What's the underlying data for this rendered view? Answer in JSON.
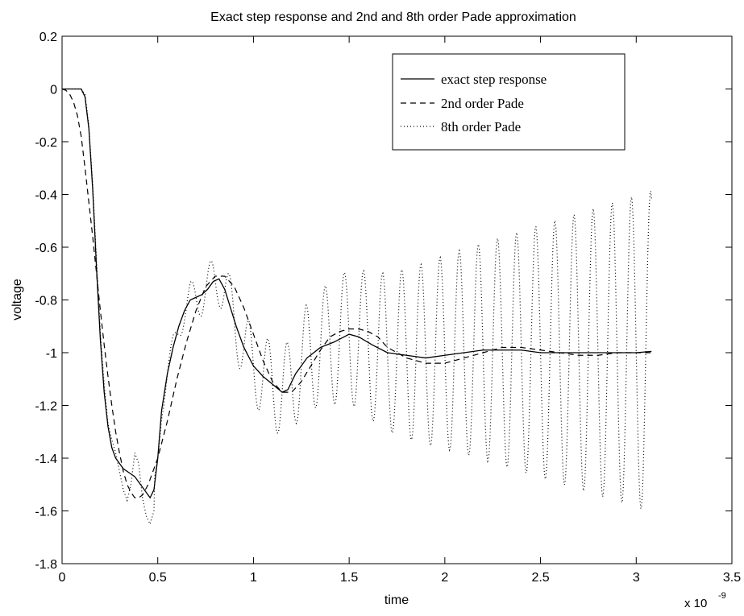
{
  "chart_data": {
    "type": "line",
    "title": "Exact step response and 2nd and 8th order Pade approximation",
    "xlabel": "time",
    "ylabel": "voltage",
    "x_multiplier_label": "x 10",
    "x_multiplier_exp": "-9",
    "xlim": [
      0,
      3.5
    ],
    "ylim": [
      -1.8,
      0.2
    ],
    "xticks": [
      0,
      0.5,
      1,
      1.5,
      2,
      2.5,
      3,
      3.5
    ],
    "xtick_labels": [
      "0",
      "0.5",
      "1",
      "1.5",
      "2",
      "2.5",
      "3",
      "3.5"
    ],
    "yticks": [
      0.2,
      0,
      -0.2,
      -0.4,
      -0.6,
      -0.8,
      -1,
      -1.2,
      -1.4,
      -1.6,
      -1.8
    ],
    "ytick_labels": [
      "0.2",
      "0",
      "-0.2",
      "-0.4",
      "-0.6",
      "-0.8",
      "-1",
      "-1.2",
      "-1.4",
      "-1.6",
      "-1.8"
    ],
    "grid": false,
    "legend_position": "top-right",
    "series": [
      {
        "name": "exact step response",
        "style": "solid",
        "points": [
          [
            0,
            0
          ],
          [
            0.05,
            0
          ],
          [
            0.1,
            0
          ],
          [
            0.12,
            -0.03
          ],
          [
            0.14,
            -0.15
          ],
          [
            0.16,
            -0.38
          ],
          [
            0.18,
            -0.68
          ],
          [
            0.2,
            -0.95
          ],
          [
            0.22,
            -1.15
          ],
          [
            0.24,
            -1.28
          ],
          [
            0.26,
            -1.36
          ],
          [
            0.28,
            -1.4
          ],
          [
            0.3,
            -1.42
          ],
          [
            0.32,
            -1.44
          ],
          [
            0.34,
            -1.45
          ],
          [
            0.36,
            -1.46
          ],
          [
            0.38,
            -1.47
          ],
          [
            0.4,
            -1.49
          ],
          [
            0.42,
            -1.51
          ],
          [
            0.44,
            -1.53
          ],
          [
            0.46,
            -1.55
          ],
          [
            0.48,
            -1.52
          ],
          [
            0.5,
            -1.4
          ],
          [
            0.52,
            -1.22
          ],
          [
            0.55,
            -1.08
          ],
          [
            0.58,
            -0.98
          ],
          [
            0.61,
            -0.9
          ],
          [
            0.64,
            -0.84
          ],
          [
            0.67,
            -0.8
          ],
          [
            0.7,
            -0.79
          ],
          [
            0.73,
            -0.78
          ],
          [
            0.76,
            -0.76
          ],
          [
            0.79,
            -0.73
          ],
          [
            0.82,
            -0.72
          ],
          [
            0.85,
            -0.76
          ],
          [
            0.88,
            -0.83
          ],
          [
            0.91,
            -0.9
          ],
          [
            0.95,
            -0.98
          ],
          [
            1,
            -1.05
          ],
          [
            1.05,
            -1.09
          ],
          [
            1.1,
            -1.12
          ],
          [
            1.15,
            -1.15
          ],
          [
            1.18,
            -1.14
          ],
          [
            1.22,
            -1.08
          ],
          [
            1.28,
            -1.02
          ],
          [
            1.35,
            -0.98
          ],
          [
            1.42,
            -0.96
          ],
          [
            1.5,
            -0.93
          ],
          [
            1.55,
            -0.94
          ],
          [
            1.62,
            -0.97
          ],
          [
            1.7,
            -1
          ],
          [
            1.8,
            -1.01
          ],
          [
            1.9,
            -1.02
          ],
          [
            2,
            -1.01
          ],
          [
            2.1,
            -1
          ],
          [
            2.2,
            -0.99
          ],
          [
            2.3,
            -0.99
          ],
          [
            2.4,
            -0.99
          ],
          [
            2.5,
            -1
          ],
          [
            2.6,
            -1
          ],
          [
            2.7,
            -1
          ],
          [
            2.8,
            -1
          ],
          [
            2.9,
            -1
          ],
          [
            3,
            -1
          ],
          [
            3.08,
            -0.995
          ]
        ]
      },
      {
        "name": "2nd order Pade",
        "style": "dashed",
        "points": [
          [
            0,
            0
          ],
          [
            0.02,
            -0.005
          ],
          [
            0.04,
            -0.02
          ],
          [
            0.06,
            -0.05
          ],
          [
            0.08,
            -0.1
          ],
          [
            0.1,
            -0.18
          ],
          [
            0.12,
            -0.3
          ],
          [
            0.14,
            -0.43
          ],
          [
            0.16,
            -0.56
          ],
          [
            0.18,
            -0.7
          ],
          [
            0.2,
            -0.84
          ],
          [
            0.22,
            -0.97
          ],
          [
            0.24,
            -1.09
          ],
          [
            0.26,
            -1.2
          ],
          [
            0.28,
            -1.3
          ],
          [
            0.3,
            -1.38
          ],
          [
            0.32,
            -1.45
          ],
          [
            0.34,
            -1.5
          ],
          [
            0.36,
            -1.53
          ],
          [
            0.38,
            -1.55
          ],
          [
            0.4,
            -1.55
          ],
          [
            0.42,
            -1.54
          ],
          [
            0.45,
            -1.5
          ],
          [
            0.5,
            -1.4
          ],
          [
            0.55,
            -1.26
          ],
          [
            0.6,
            -1.1
          ],
          [
            0.65,
            -0.96
          ],
          [
            0.7,
            -0.84
          ],
          [
            0.75,
            -0.75
          ],
          [
            0.8,
            -0.71
          ],
          [
            0.85,
            -0.71
          ],
          [
            0.9,
            -0.75
          ],
          [
            0.95,
            -0.83
          ],
          [
            1,
            -0.93
          ],
          [
            1.05,
            -1.03
          ],
          [
            1.1,
            -1.11
          ],
          [
            1.15,
            -1.15
          ],
          [
            1.2,
            -1.15
          ],
          [
            1.25,
            -1.11
          ],
          [
            1.3,
            -1.05
          ],
          [
            1.35,
            -0.99
          ],
          [
            1.4,
            -0.94
          ],
          [
            1.45,
            -0.92
          ],
          [
            1.5,
            -0.91
          ],
          [
            1.55,
            -0.91
          ],
          [
            1.6,
            -0.92
          ],
          [
            1.65,
            -0.94
          ],
          [
            1.7,
            -0.98
          ],
          [
            1.8,
            -1.02
          ],
          [
            1.9,
            -1.04
          ],
          [
            2,
            -1.04
          ],
          [
            2.1,
            -1.02
          ],
          [
            2.2,
            -1
          ],
          [
            2.3,
            -0.98
          ],
          [
            2.4,
            -0.98
          ],
          [
            2.5,
            -0.99
          ],
          [
            2.6,
            -1
          ],
          [
            2.7,
            -1.01
          ],
          [
            2.8,
            -1.01
          ],
          [
            2.9,
            -1
          ],
          [
            3,
            -1
          ],
          [
            3.08,
            -1
          ]
        ]
      },
      {
        "name": "8th order Pade",
        "style": "dotted",
        "envelope": {
          "period": 0.1,
          "osc_start": 0.5,
          "amp_start": 0.03,
          "amp_end": 0.61,
          "amp_shape": "linear",
          "center_from_series": 0,
          "center_blend_start": 1.4,
          "center_blend_end": 2.2,
          "center_final": -0.995,
          "sample_step": 0.004
        },
        "points_lead": [
          [
            0,
            0
          ],
          [
            0.1,
            0
          ],
          [
            0.12,
            -0.02
          ],
          [
            0.14,
            -0.14
          ],
          [
            0.16,
            -0.36
          ],
          [
            0.18,
            -0.65
          ],
          [
            0.2,
            -0.92
          ],
          [
            0.22,
            -1.12
          ],
          [
            0.24,
            -1.27
          ],
          [
            0.26,
            -1.33
          ],
          [
            0.28,
            -1.38
          ],
          [
            0.3,
            -1.45
          ],
          [
            0.32,
            -1.52
          ],
          [
            0.34,
            -1.56
          ],
          [
            0.36,
            -1.5
          ],
          [
            0.38,
            -1.38
          ],
          [
            0.4,
            -1.42
          ],
          [
            0.42,
            -1.55
          ],
          [
            0.44,
            -1.62
          ],
          [
            0.46,
            -1.65
          ],
          [
            0.48,
            -1.6
          ]
        ]
      }
    ]
  }
}
